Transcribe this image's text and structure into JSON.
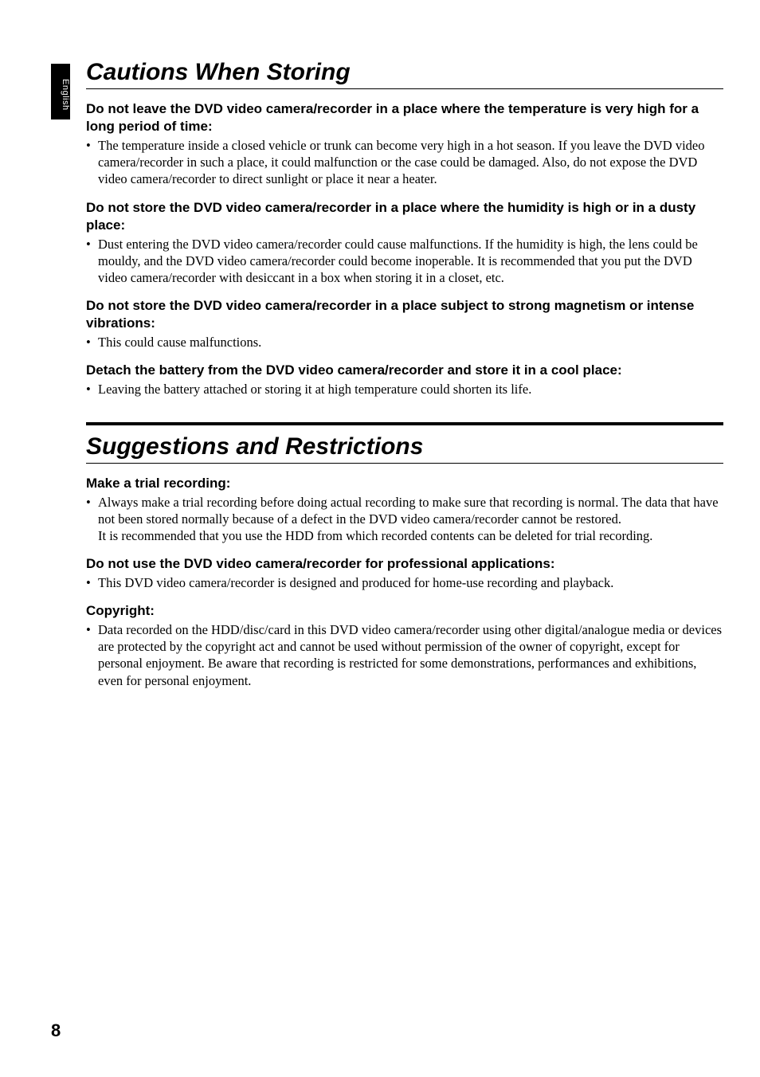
{
  "side_tab": "English",
  "page_number": "8",
  "section1": {
    "title": "Cautions When Storing",
    "items": [
      {
        "heading": "Do not leave the DVD video camera/recorder in a place where the temperature is very high for a long period of time:",
        "bullet": "The temperature inside a closed vehicle or trunk can become very high in a hot season. If you leave the DVD video camera/recorder in such a place, it could malfunction or the case could be damaged. Also, do not expose the DVD video camera/recorder to direct sunlight or place it near a heater."
      },
      {
        "heading": "Do not store the DVD video camera/recorder in a place where the humidity is high or in a dusty place:",
        "bullet": "Dust entering the DVD video camera/recorder could cause malfunctions. If the humidity is high, the lens could be mouldy, and the DVD video camera/recorder could become inoperable. It is recommended that you put the DVD video camera/recorder with desiccant in a box when storing it in a closet, etc."
      },
      {
        "heading": "Do not store the DVD video camera/recorder in a place subject to strong magnetism or intense vibrations:",
        "bullet": "This could cause malfunctions."
      },
      {
        "heading": "Detach the battery from the DVD video camera/recorder and store it in a cool place:",
        "bullet": "Leaving the battery attached or storing it at high temperature could shorten its life."
      }
    ]
  },
  "section2": {
    "title": "Suggestions and Restrictions",
    "items": [
      {
        "heading": "Make a trial recording:",
        "bullet": "Always make a trial recording before doing actual recording to make sure that recording is normal. The data that have not been stored normally because of a defect in the DVD video camera/recorder cannot be restored.",
        "follow": "It is recommended that you use the HDD  from which recorded contents can be deleted for trial recording."
      },
      {
        "heading": "Do not use the DVD video camera/recorder for professional applications:",
        "bullet": "This DVD video camera/recorder is designed and produced for home-use recording and playback."
      },
      {
        "heading": "Copyright:",
        "bullet": "Data recorded on the HDD/disc/card in this DVD video camera/recorder using other digital/analogue media or devices are protected by the copyright act and cannot be used without permission of the owner of copyright, except for personal enjoyment. Be aware that recording is restricted for some demonstrations, performances and exhibitions, even for personal enjoyment."
      }
    ]
  }
}
